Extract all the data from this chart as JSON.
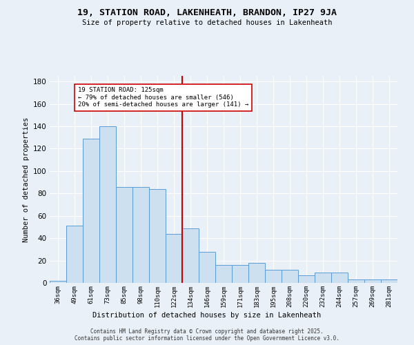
{
  "title": "19, STATION ROAD, LAKENHEATH, BRANDON, IP27 9JA",
  "subtitle": "Size of property relative to detached houses in Lakenheath",
  "xlabel": "Distribution of detached houses by size in Lakenheath",
  "ylabel": "Number of detached properties",
  "bar_labels": [
    "36sqm",
    "49sqm",
    "61sqm",
    "73sqm",
    "85sqm",
    "98sqm",
    "110sqm",
    "122sqm",
    "134sqm",
    "146sqm",
    "159sqm",
    "171sqm",
    "183sqm",
    "195sqm",
    "208sqm",
    "220sqm",
    "232sqm",
    "244sqm",
    "257sqm",
    "269sqm",
    "281sqm"
  ],
  "bar_values": [
    2,
    51,
    129,
    140,
    86,
    86,
    84,
    44,
    49,
    28,
    16,
    16,
    18,
    12,
    12,
    7,
    9,
    9,
    3,
    3,
    3
  ],
  "bar_color": "#cce0f0",
  "bar_edge_color": "#5b9bd5",
  "vline_x_index": 7.5,
  "vline_color": "#cc0000",
  "annotation_text": "19 STATION ROAD: 125sqm\n← 79% of detached houses are smaller (546)\n20% of semi-detached houses are larger (141) →",
  "annotation_box_color": "#ffffff",
  "annotation_box_edge": "#cc0000",
  "ylim": [
    0,
    185
  ],
  "yticks": [
    0,
    20,
    40,
    60,
    80,
    100,
    120,
    140,
    160,
    180
  ],
  "footer": "Contains HM Land Registry data © Crown copyright and database right 2025.\nContains public sector information licensed under the Open Government Licence v3.0.",
  "bg_color": "#eaf0f8",
  "plot_bg_color": "#eaf0f8",
  "grid_color": "#ffffff"
}
